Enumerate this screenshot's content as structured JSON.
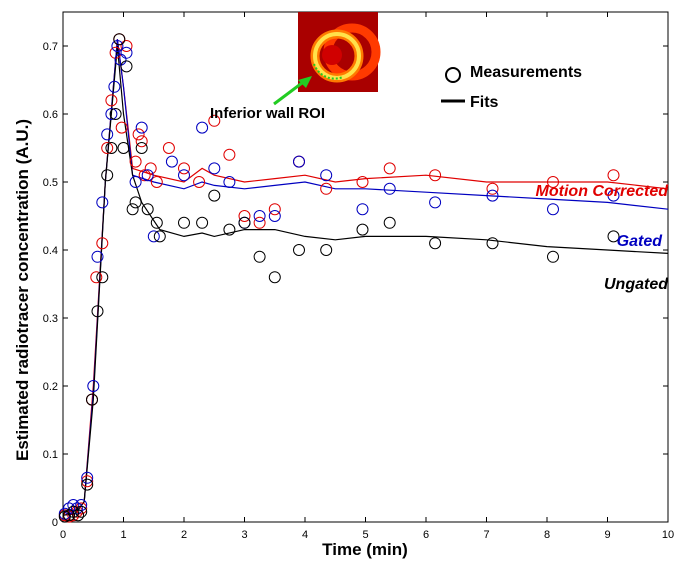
{
  "chart_data": {
    "type": "scatter",
    "title": "",
    "xlabel": "Time (min)",
    "ylabel": "Estimated radiotracer concentration (A.U.)",
    "xlim": [
      0,
      10
    ],
    "ylim": [
      0,
      0.75
    ],
    "xticks": [
      0,
      1,
      2,
      3,
      4,
      5,
      6,
      7,
      8,
      9,
      10
    ],
    "yticks": [
      0,
      0.1,
      0.2,
      0.3,
      0.4,
      0.5,
      0.6,
      0.7
    ],
    "legend": {
      "placement": "top-right",
      "entries": [
        {
          "marker": "circle",
          "label": "Measurements"
        },
        {
          "marker": "line",
          "label": "Fits"
        }
      ]
    },
    "annotation": {
      "text": "Inferior wall ROI",
      "inset": "cardiac PET short-axis image"
    },
    "series": [
      {
        "name": "Motion Corrected",
        "color": "#e00000",
        "measurements": [
          [
            0.03,
            0.01
          ],
          [
            0.1,
            0.008
          ],
          [
            0.17,
            0.01
          ],
          [
            0.23,
            0.015
          ],
          [
            0.3,
            0.02
          ],
          [
            0.4,
            0.06
          ],
          [
            0.48,
            0.18
          ],
          [
            0.55,
            0.36
          ],
          [
            0.65,
            0.41
          ],
          [
            0.73,
            0.55
          ],
          [
            0.8,
            0.62
          ],
          [
            0.87,
            0.69
          ],
          [
            0.93,
            0.71
          ],
          [
            0.97,
            0.58
          ],
          [
            1.05,
            0.7
          ],
          [
            1.2,
            0.53
          ],
          [
            1.25,
            0.57
          ],
          [
            1.3,
            0.56
          ],
          [
            1.35,
            0.51
          ],
          [
            1.45,
            0.52
          ],
          [
            1.55,
            0.5
          ],
          [
            1.75,
            0.55
          ],
          [
            2.0,
            0.52
          ],
          [
            2.25,
            0.5
          ],
          [
            2.5,
            0.59
          ],
          [
            2.75,
            0.54
          ],
          [
            3.0,
            0.45
          ],
          [
            3.25,
            0.44
          ],
          [
            3.5,
            0.46
          ],
          [
            3.9,
            0.53
          ],
          [
            4.35,
            0.49
          ],
          [
            4.95,
            0.5
          ],
          [
            5.4,
            0.52
          ],
          [
            6.15,
            0.51
          ],
          [
            7.1,
            0.49
          ],
          [
            8.1,
            0.5
          ],
          [
            9.1,
            0.51
          ]
        ],
        "fit": [
          [
            0,
            0.01
          ],
          [
            0.2,
            0.012
          ],
          [
            0.35,
            0.03
          ],
          [
            0.5,
            0.2
          ],
          [
            0.7,
            0.5
          ],
          [
            0.9,
            0.71
          ],
          [
            1.0,
            0.64
          ],
          [
            1.15,
            0.52
          ],
          [
            1.5,
            0.51
          ],
          [
            2.0,
            0.5
          ],
          [
            2.3,
            0.52
          ],
          [
            2.5,
            0.51
          ],
          [
            3.0,
            0.5
          ],
          [
            3.5,
            0.505
          ],
          [
            4.0,
            0.51
          ],
          [
            4.5,
            0.5
          ],
          [
            5.0,
            0.505
          ],
          [
            6.0,
            0.51
          ],
          [
            7.0,
            0.5
          ],
          [
            8.0,
            0.5
          ],
          [
            9.0,
            0.5
          ],
          [
            10.0,
            0.49
          ]
        ]
      },
      {
        "name": "Gated",
        "color": "#0000c0",
        "measurements": [
          [
            0.03,
            0.012
          ],
          [
            0.1,
            0.02
          ],
          [
            0.17,
            0.025
          ],
          [
            0.23,
            0.02
          ],
          [
            0.3,
            0.025
          ],
          [
            0.4,
            0.065
          ],
          [
            0.5,
            0.2
          ],
          [
            0.57,
            0.39
          ],
          [
            0.65,
            0.47
          ],
          [
            0.73,
            0.57
          ],
          [
            0.8,
            0.6
          ],
          [
            0.85,
            0.64
          ],
          [
            0.9,
            0.7
          ],
          [
            0.95,
            0.68
          ],
          [
            1.05,
            0.69
          ],
          [
            1.2,
            0.5
          ],
          [
            1.3,
            0.58
          ],
          [
            1.4,
            0.51
          ],
          [
            1.5,
            0.42
          ],
          [
            1.8,
            0.53
          ],
          [
            2.0,
            0.51
          ],
          [
            2.3,
            0.58
          ],
          [
            2.5,
            0.52
          ],
          [
            2.75,
            0.5
          ],
          [
            3.0,
            0.44
          ],
          [
            3.25,
            0.45
          ],
          [
            3.5,
            0.45
          ],
          [
            3.9,
            0.53
          ],
          [
            4.35,
            0.51
          ],
          [
            4.95,
            0.46
          ],
          [
            5.4,
            0.49
          ],
          [
            6.15,
            0.47
          ],
          [
            7.1,
            0.48
          ],
          [
            8.1,
            0.46
          ],
          [
            9.1,
            0.48
          ]
        ],
        "fit": [
          [
            0,
            0.01
          ],
          [
            0.2,
            0.012
          ],
          [
            0.35,
            0.03
          ],
          [
            0.5,
            0.19
          ],
          [
            0.7,
            0.5
          ],
          [
            0.9,
            0.71
          ],
          [
            1.0,
            0.64
          ],
          [
            1.15,
            0.51
          ],
          [
            1.5,
            0.5
          ],
          [
            2.0,
            0.49
          ],
          [
            2.3,
            0.5
          ],
          [
            2.5,
            0.495
          ],
          [
            3.0,
            0.49
          ],
          [
            3.5,
            0.495
          ],
          [
            4.0,
            0.5
          ],
          [
            4.5,
            0.49
          ],
          [
            5.0,
            0.49
          ],
          [
            6.0,
            0.485
          ],
          [
            7.0,
            0.48
          ],
          [
            8.0,
            0.475
          ],
          [
            9.0,
            0.47
          ],
          [
            10.0,
            0.46
          ]
        ]
      },
      {
        "name": "Ungated",
        "color": "#000000",
        "measurements": [
          [
            0.03,
            0.008
          ],
          [
            0.1,
            0.01
          ],
          [
            0.17,
            0.015
          ],
          [
            0.25,
            0.01
          ],
          [
            0.3,
            0.015
          ],
          [
            0.4,
            0.055
          ],
          [
            0.48,
            0.18
          ],
          [
            0.57,
            0.31
          ],
          [
            0.65,
            0.36
          ],
          [
            0.73,
            0.51
          ],
          [
            0.8,
            0.55
          ],
          [
            0.87,
            0.6
          ],
          [
            0.93,
            0.71
          ],
          [
            1.0,
            0.55
          ],
          [
            1.05,
            0.67
          ],
          [
            1.15,
            0.46
          ],
          [
            1.2,
            0.47
          ],
          [
            1.3,
            0.55
          ],
          [
            1.4,
            0.46
          ],
          [
            1.55,
            0.44
          ],
          [
            1.6,
            0.42
          ],
          [
            2.0,
            0.44
          ],
          [
            2.3,
            0.44
          ],
          [
            2.5,
            0.48
          ],
          [
            2.75,
            0.43
          ],
          [
            3.0,
            0.44
          ],
          [
            3.25,
            0.39
          ],
          [
            3.5,
            0.36
          ],
          [
            3.9,
            0.4
          ],
          [
            4.35,
            0.4
          ],
          [
            4.95,
            0.43
          ],
          [
            5.4,
            0.44
          ],
          [
            6.15,
            0.41
          ],
          [
            7.1,
            0.41
          ],
          [
            8.1,
            0.39
          ],
          [
            9.1,
            0.42
          ]
        ],
        "fit": [
          [
            0,
            0.01
          ],
          [
            0.2,
            0.012
          ],
          [
            0.35,
            0.03
          ],
          [
            0.5,
            0.18
          ],
          [
            0.7,
            0.5
          ],
          [
            0.9,
            0.7
          ],
          [
            1.0,
            0.6
          ],
          [
            1.15,
            0.51
          ],
          [
            1.3,
            0.47
          ],
          [
            1.6,
            0.43
          ],
          [
            2.0,
            0.42
          ],
          [
            2.3,
            0.425
          ],
          [
            2.5,
            0.42
          ],
          [
            3.0,
            0.43
          ],
          [
            3.5,
            0.43
          ],
          [
            4.0,
            0.42
          ],
          [
            4.5,
            0.415
          ],
          [
            5.0,
            0.42
          ],
          [
            6.0,
            0.42
          ],
          [
            7.0,
            0.415
          ],
          [
            8.0,
            0.405
          ],
          [
            9.0,
            0.4
          ],
          [
            10.0,
            0.395
          ]
        ]
      }
    ]
  }
}
